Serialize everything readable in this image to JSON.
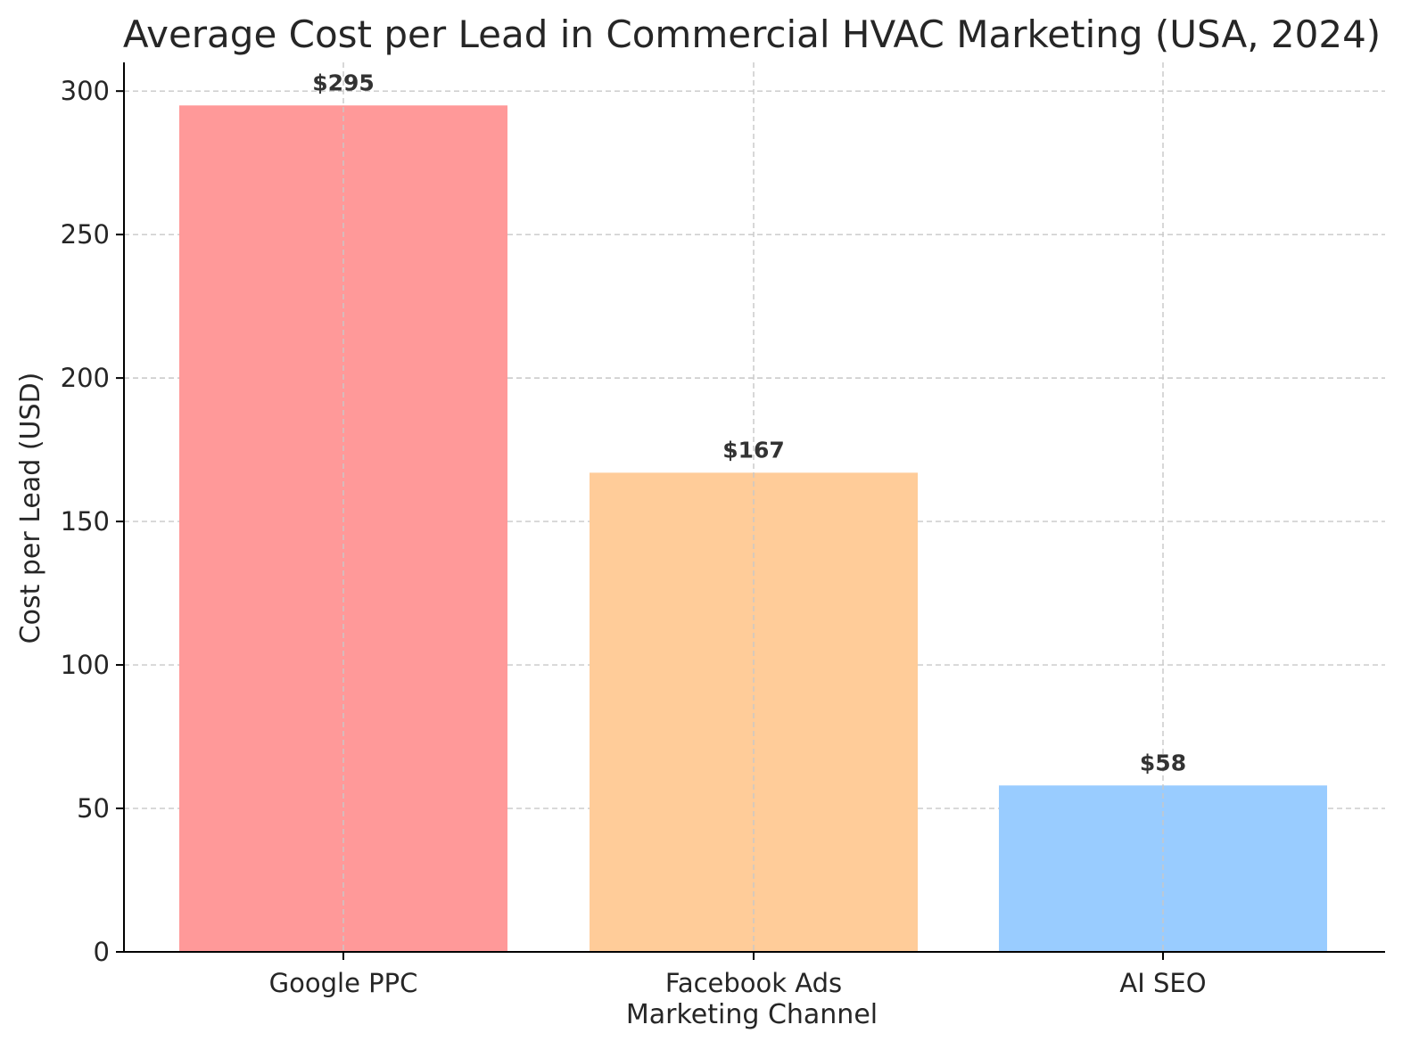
{
  "chart_data": {
    "type": "bar",
    "title": "Average Cost per Lead in Commercial HVAC Marketing (USA, 2024)",
    "xlabel": "Marketing Channel",
    "ylabel": "Cost per Lead (USD)",
    "categories": [
      "Google PPC",
      "Facebook Ads",
      "AI SEO"
    ],
    "values": [
      295,
      167,
      58
    ],
    "data_labels": [
      "$295",
      "$167",
      "$58"
    ],
    "colors": [
      "#ff9999",
      "#ffcc99",
      "#99ccff"
    ],
    "ylim": [
      0,
      310
    ],
    "yticks": [
      0,
      50,
      100,
      150,
      200,
      250,
      300
    ],
    "grid": true
  }
}
